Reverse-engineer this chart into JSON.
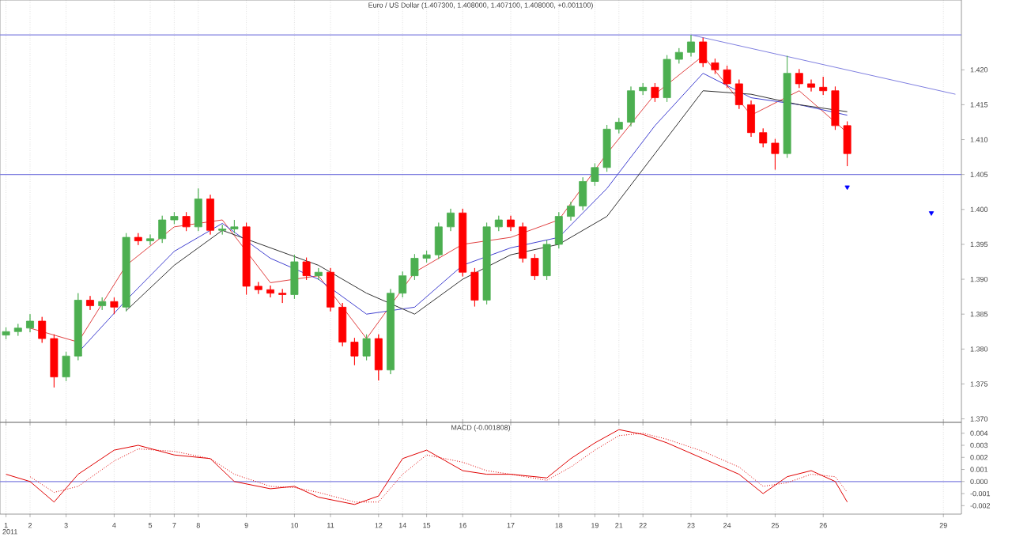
{
  "chart_data": [
    {
      "type": "candlestick",
      "title": "Euro / US Dollar (1.407300, 1.408000, 1.407100, 1.408000, +0.001100)",
      "categories": [
        "1",
        null,
        "2",
        null,
        null,
        "3",
        null,
        null,
        null,
        "4",
        null,
        null,
        "5",
        null,
        "7",
        null,
        "8",
        null,
        null,
        null,
        "9",
        null,
        null,
        null,
        "10",
        null,
        null,
        "11",
        null,
        null,
        null,
        "12",
        null,
        "14",
        null,
        "15",
        null,
        null,
        "16",
        null,
        null,
        null,
        "17",
        null,
        null,
        null,
        "18",
        null,
        null,
        "19",
        null,
        "21",
        null,
        "22",
        null,
        null,
        null,
        "23",
        null,
        null,
        "24",
        null,
        null,
        null,
        "25",
        null,
        null,
        null,
        "26",
        null,
        null,
        null,
        null,
        null,
        null,
        null,
        null,
        null,
        "29",
        null
      ],
      "ohlc": [
        [
          1.382,
          1.3831,
          1.3814,
          1.3825
        ],
        [
          1.3825,
          1.3836,
          1.3819,
          1.383
        ],
        [
          1.383,
          1.385,
          1.3824,
          1.384
        ],
        [
          1.384,
          1.3846,
          1.3809,
          1.3815
        ],
        [
          1.3815,
          1.3821,
          1.3745,
          1.376
        ],
        [
          1.376,
          1.3796,
          1.3754,
          1.379
        ],
        [
          1.379,
          1.388,
          1.3784,
          1.387
        ],
        [
          1.387,
          1.3876,
          1.3856,
          1.3862
        ],
        [
          1.3862,
          1.3874,
          1.3856,
          1.3868
        ],
        [
          1.3868,
          1.3874,
          1.385,
          1.386
        ],
        [
          1.386,
          1.3966,
          1.3854,
          1.396
        ],
        [
          1.396,
          1.3966,
          1.3949,
          1.3955
        ],
        [
          1.3955,
          1.3964,
          1.3949,
          1.3958
        ],
        [
          1.3958,
          1.3991,
          1.3952,
          1.3985
        ],
        [
          1.3985,
          1.3996,
          1.3979,
          1.399
        ],
        [
          1.399,
          1.3996,
          1.3969,
          1.3975
        ],
        [
          1.3975,
          1.403,
          1.3969,
          1.4015
        ],
        [
          1.4015,
          1.4021,
          1.3964,
          1.397
        ],
        [
          1.397,
          1.3978,
          1.3964,
          1.3972
        ],
        [
          1.3972,
          1.3985,
          1.3966,
          1.3975
        ],
        [
          1.3975,
          1.3981,
          1.3878,
          1.389
        ],
        [
          1.389,
          1.3896,
          1.3879,
          1.3885
        ],
        [
          1.3885,
          1.3891,
          1.3874,
          1.388
        ],
        [
          1.388,
          1.3886,
          1.3866,
          1.3878
        ],
        [
          1.3878,
          1.3935,
          1.3872,
          1.3925
        ],
        [
          1.3925,
          1.3931,
          1.3899,
          1.3905
        ],
        [
          1.3905,
          1.3916,
          1.3899,
          1.391
        ],
        [
          1.391,
          1.3916,
          1.3854,
          1.386
        ],
        [
          1.386,
          1.3866,
          1.3804,
          1.381
        ],
        [
          1.381,
          1.3816,
          1.3777,
          1.379
        ],
        [
          1.379,
          1.3821,
          1.3784,
          1.3815
        ],
        [
          1.3815,
          1.3821,
          1.3755,
          1.377
        ],
        [
          1.377,
          1.3886,
          1.3764,
          1.388
        ],
        [
          1.388,
          1.3911,
          1.3874,
          1.3905
        ],
        [
          1.3905,
          1.3936,
          1.3899,
          1.393
        ],
        [
          1.393,
          1.3941,
          1.3924,
          1.3935
        ],
        [
          1.3935,
          1.3981,
          1.3929,
          1.3975
        ],
        [
          1.3975,
          1.4001,
          1.3969,
          1.3995
        ],
        [
          1.3995,
          1.4001,
          1.3904,
          1.391
        ],
        [
          1.391,
          1.3916,
          1.3861,
          1.387
        ],
        [
          1.387,
          1.3981,
          1.3864,
          1.3975
        ],
        [
          1.3975,
          1.3991,
          1.3969,
          1.3985
        ],
        [
          1.3985,
          1.3991,
          1.3969,
          1.3975
        ],
        [
          1.3975,
          1.3981,
          1.3924,
          1.393
        ],
        [
          1.393,
          1.3936,
          1.3899,
          1.3905
        ],
        [
          1.3905,
          1.3956,
          1.3899,
          1.395
        ],
        [
          1.395,
          1.3996,
          1.3944,
          1.399
        ],
        [
          1.399,
          1.4011,
          1.3984,
          1.4005
        ],
        [
          1.4005,
          1.4046,
          1.3999,
          1.404
        ],
        [
          1.404,
          1.4066,
          1.4034,
          1.406
        ],
        [
          1.406,
          1.4121,
          1.4054,
          1.4115
        ],
        [
          1.4115,
          1.4131,
          1.4109,
          1.4125
        ],
        [
          1.4125,
          1.4176,
          1.4119,
          1.417
        ],
        [
          1.417,
          1.4181,
          1.4164,
          1.4175
        ],
        [
          1.4175,
          1.4181,
          1.4154,
          1.416
        ],
        [
          1.416,
          1.4221,
          1.4154,
          1.4215
        ],
        [
          1.4215,
          1.4231,
          1.4209,
          1.4225
        ],
        [
          1.4225,
          1.425,
          1.4219,
          1.424
        ],
        [
          1.424,
          1.4246,
          1.4204,
          1.421
        ],
        [
          1.421,
          1.4216,
          1.4194,
          1.42
        ],
        [
          1.42,
          1.4206,
          1.4174,
          1.418
        ],
        [
          1.418,
          1.4186,
          1.4144,
          1.415
        ],
        [
          1.415,
          1.4156,
          1.4104,
          1.411
        ],
        [
          1.411,
          1.4116,
          1.4089,
          1.4095
        ],
        [
          1.4095,
          1.4101,
          1.4057,
          1.408
        ],
        [
          1.408,
          1.422,
          1.4074,
          1.4195
        ],
        [
          1.4195,
          1.4201,
          1.4174,
          1.418
        ],
        [
          1.418,
          1.4186,
          1.4169,
          1.4175
        ],
        [
          1.4175,
          1.419,
          1.4164,
          1.417
        ],
        [
          1.417,
          1.4176,
          1.4114,
          1.412
        ],
        [
          1.412,
          1.4126,
          1.4062,
          1.408
        ],
        null,
        null,
        null,
        null,
        null,
        null,
        null,
        null,
        null
      ],
      "colors": [
        "#4caf50",
        "#4caf50",
        "#4caf50",
        "#ff0000",
        "#ff0000",
        "#4caf50",
        "#4caf50",
        "#ff0000",
        "#4caf50",
        "#ff0000",
        "#4caf50",
        "#ff0000",
        "#4caf50",
        "#4caf50",
        "#4caf50",
        "#ff0000",
        "#4caf50",
        "#ff0000",
        "#4caf50",
        "#4caf50",
        "#ff0000",
        "#ff0000",
        "#ff0000",
        "#ff0000",
        "#4caf50",
        "#ff0000",
        "#4caf50",
        "#ff0000",
        "#ff0000",
        "#ff0000",
        "#4caf50",
        "#ff0000",
        "#4caf50",
        "#4caf50",
        "#4caf50",
        "#4caf50",
        "#4caf50",
        "#4caf50",
        "#ff0000",
        "#ff0000",
        "#4caf50",
        "#4caf50",
        "#ff0000",
        "#ff0000",
        "#ff0000",
        "#4caf50",
        "#4caf50",
        "#4caf50",
        "#4caf50",
        "#4caf50",
        "#4caf50",
        "#4caf50",
        "#4caf50",
        "#4caf50",
        "#ff0000",
        "#4caf50",
        "#4caf50",
        "#4caf50",
        "#ff0000",
        "#ff0000",
        "#ff0000",
        "#ff0000",
        "#ff0000",
        "#ff0000",
        "#ff0000",
        "#4caf50",
        "#ff0000",
        "#ff0000",
        "#ff0000",
        "#ff0000",
        "#ff0000",
        null,
        null,
        null,
        null,
        null,
        null,
        null,
        null,
        null
      ],
      "series": [
        {
          "type": "line",
          "color": "#e04040",
          "values": [
            null,
            null,
            1.383,
            null,
            null,
            null,
            1.381,
            null,
            null,
            null,
            1.392,
            null,
            null,
            null,
            1.3975,
            null,
            null,
            null,
            1.3985,
            null,
            null,
            null,
            1.3895,
            null,
            null,
            null,
            1.3905,
            null,
            null,
            null,
            1.3815,
            null,
            null,
            null,
            1.391,
            null,
            null,
            null,
            1.395,
            null,
            null,
            null,
            1.396,
            null,
            null,
            null,
            1.3985,
            null,
            null,
            null,
            1.408,
            null,
            null,
            null,
            1.4165,
            null,
            null,
            null,
            1.422,
            null,
            null,
            null,
            1.4135,
            null,
            null,
            null,
            1.417,
            null,
            null,
            null,
            1.411,
            null,
            null,
            null,
            null,
            null,
            null,
            null,
            null,
            null
          ]
        },
        {
          "type": "line",
          "color": "#4040d0",
          "values": [
            null,
            null,
            null,
            null,
            null,
            null,
            1.3795,
            null,
            null,
            null,
            1.387,
            null,
            null,
            null,
            1.394,
            null,
            null,
            null,
            1.398,
            null,
            null,
            null,
            1.393,
            null,
            null,
            null,
            1.39,
            null,
            null,
            null,
            1.385,
            null,
            null,
            null,
            1.386,
            null,
            null,
            null,
            1.392,
            null,
            null,
            null,
            1.3945,
            null,
            null,
            null,
            1.396,
            null,
            null,
            null,
            1.403,
            null,
            null,
            null,
            1.412,
            null,
            null,
            null,
            1.4195,
            null,
            null,
            null,
            1.416,
            null,
            null,
            null,
            1.415,
            null,
            null,
            null,
            1.4135,
            null,
            null,
            null,
            null,
            null,
            null,
            null,
            null,
            null
          ]
        },
        {
          "type": "line",
          "color": "#303030",
          "values": [
            null,
            null,
            null,
            null,
            null,
            null,
            null,
            null,
            null,
            null,
            1.3855,
            null,
            null,
            null,
            1.392,
            null,
            null,
            null,
            1.397,
            null,
            null,
            null,
            1.3945,
            null,
            null,
            null,
            1.392,
            null,
            null,
            null,
            1.388,
            null,
            null,
            null,
            1.385,
            null,
            null,
            null,
            1.39,
            null,
            null,
            null,
            1.3935,
            null,
            null,
            null,
            1.395,
            null,
            null,
            null,
            1.399,
            null,
            null,
            null,
            1.408,
            null,
            null,
            null,
            1.417,
            null,
            null,
            null,
            1.4165,
            null,
            null,
            null,
            1.415,
            null,
            null,
            null,
            1.414,
            null,
            null,
            null,
            null,
            null,
            null,
            null,
            null,
            null
          ]
        },
        {
          "type": "line",
          "color": "#8080e0",
          "values": [
            null,
            null,
            null,
            null,
            null,
            null,
            null,
            null,
            null,
            null,
            null,
            null,
            null,
            null,
            null,
            null,
            null,
            null,
            null,
            null,
            null,
            null,
            null,
            null,
            null,
            null,
            null,
            null,
            null,
            null,
            null,
            null,
            null,
            null,
            null,
            null,
            null,
            null,
            null,
            null,
            null,
            null,
            null,
            null,
            null,
            null,
            null,
            null,
            null,
            null,
            null,
            null,
            null,
            null,
            null,
            null,
            null,
            1.425,
            null,
            null,
            null,
            null,
            null,
            null,
            null,
            null,
            null,
            null,
            null,
            null,
            null,
            null,
            null,
            null,
            null,
            null,
            null,
            null,
            null,
            1.4165
          ]
        },
        {
          "type": "scatter",
          "color": "#0000ff",
          "marker": "triangle",
          "values": [
            null,
            null,
            null,
            null,
            null,
            null,
            null,
            null,
            null,
            null,
            null,
            null,
            null,
            null,
            null,
            null,
            null,
            null,
            null,
            null,
            null,
            null,
            null,
            null,
            null,
            null,
            null,
            null,
            null,
            null,
            null,
            null,
            null,
            null,
            null,
            null,
            null,
            null,
            null,
            null,
            null,
            null,
            null,
            null,
            null,
            null,
            null,
            null,
            null,
            null,
            null,
            null,
            null,
            null,
            null,
            null,
            null,
            null,
            null,
            null,
            null,
            null,
            null,
            null,
            null,
            null,
            null,
            null,
            null,
            null,
            1.4032,
            null,
            null,
            null,
            null,
            null,
            null,
            1.3995,
            null,
            null
          ]
        }
      ],
      "ref_lines": [
        {
          "axis": "y",
          "value": 1.425,
          "color": "#8080e0"
        },
        {
          "axis": "y",
          "value": 1.405,
          "color": "#8080e0"
        }
      ],
      "ylim": [
        1.3695,
        1.43
      ],
      "yticks": [
        {
          "value": 1.37,
          "label": "1.370"
        },
        {
          "value": 1.375,
          "label": "1.375"
        },
        {
          "value": 1.38,
          "label": "1.380"
        },
        {
          "value": 1.385,
          "label": "1.385"
        },
        {
          "value": 1.39,
          "label": "1.390"
        },
        {
          "value": 1.395,
          "label": "1.395"
        },
        {
          "value": 1.4,
          "label": "1.400"
        },
        {
          "value": 1.405,
          "label": "1.405"
        },
        {
          "value": 1.41,
          "label": "1.410"
        },
        {
          "value": 1.415,
          "label": "1.415"
        },
        {
          "value": 1.42,
          "label": "1.420"
        }
      ],
      "grid": "x",
      "tick_labels": "y"
    },
    {
      "type": "line",
      "title": "MACD (-0.001808)",
      "xlabel": "2011",
      "categories": [
        "1",
        null,
        "2",
        null,
        null,
        "3",
        null,
        null,
        null,
        "4",
        null,
        null,
        "5",
        null,
        "7",
        null,
        "8",
        null,
        null,
        null,
        "9",
        null,
        null,
        null,
        "10",
        null,
        null,
        "11",
        null,
        null,
        null,
        "12",
        null,
        "14",
        null,
        "15",
        null,
        null,
        "16",
        null,
        null,
        null,
        "17",
        null,
        null,
        null,
        "18",
        null,
        null,
        "19",
        null,
        "21",
        null,
        "22",
        null,
        null,
        null,
        "23",
        null,
        null,
        "24",
        null,
        null,
        null,
        "25",
        null,
        null,
        null,
        "26",
        null,
        null,
        null,
        null,
        null,
        null,
        null,
        null,
        null,
        "29",
        null
      ],
      "series": [
        {
          "color": "#e00000",
          "values": [
            0.0006,
            null,
            0.0,
            null,
            -0.0017,
            null,
            0.0006,
            null,
            null,
            0.0026,
            null,
            0.003,
            null,
            null,
            0.0022,
            null,
            null,
            0.0019,
            null,
            0.0,
            null,
            null,
            -0.0006,
            null,
            -0.0004,
            null,
            -0.0013,
            null,
            null,
            -0.0019,
            null,
            -0.0012,
            null,
            0.0019,
            null,
            0.0026,
            null,
            null,
            0.0009,
            null,
            0.0006,
            null,
            0.0006,
            null,
            null,
            0.0003,
            null,
            0.0019,
            null,
            0.0032,
            null,
            0.0043,
            null,
            0.0039,
            null,
            0.0032,
            null,
            null,
            0.0019,
            null,
            null,
            0.0006,
            null,
            -0.001,
            null,
            0.0004,
            null,
            0.0009,
            null,
            0.0,
            -0.0017,
            null,
            null,
            null,
            null,
            null,
            null,
            null,
            null,
            null
          ]
        },
        {
          "color": "#e00000",
          "line_style": "dotted",
          "values": [
            null,
            null,
            0.0004,
            null,
            -0.0009,
            null,
            -0.0004,
            null,
            null,
            0.0017,
            null,
            0.0027,
            null,
            null,
            0.0025,
            null,
            null,
            0.0019,
            null,
            0.0006,
            null,
            null,
            -0.0004,
            null,
            -0.0005,
            null,
            -0.0009,
            null,
            null,
            -0.0017,
            null,
            -0.0017,
            null,
            0.0006,
            null,
            0.0022,
            null,
            null,
            0.0016,
            null,
            0.0009,
            null,
            0.0006,
            null,
            null,
            0.0001,
            null,
            0.0012,
            null,
            0.0026,
            null,
            0.0038,
            null,
            0.004,
            null,
            0.0035,
            null,
            null,
            0.0025,
            null,
            null,
            0.0012,
            null,
            -0.0004,
            null,
            -0.0001,
            null,
            0.0006,
            null,
            0.0004,
            -0.0009,
            null,
            null,
            null,
            null,
            null,
            null,
            null,
            null,
            null
          ]
        }
      ],
      "ref_lines": [
        {
          "axis": "y",
          "value": 0,
          "color": "#8080e0"
        }
      ],
      "ylim": [
        -0.0027,
        0.0049
      ],
      "yticks": [
        {
          "value": -0.002,
          "label": "-0.002"
        },
        {
          "value": -0.001,
          "label": "-0.001"
        },
        {
          "value": 0,
          "label": "0.000"
        },
        {
          "value": 0.001,
          "label": "0.001"
        },
        {
          "value": 0.002,
          "label": "0.002"
        },
        {
          "value": 0.003,
          "label": "0.003"
        },
        {
          "value": 0.004,
          "label": "0.004"
        }
      ],
      "grid": "x"
    }
  ]
}
